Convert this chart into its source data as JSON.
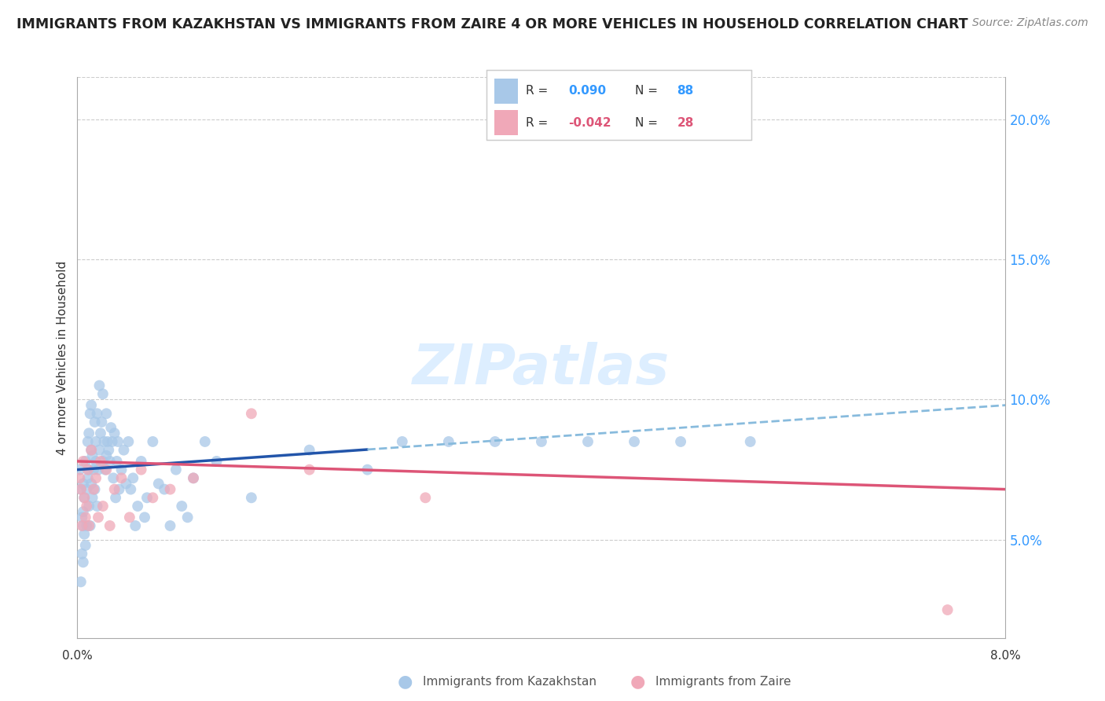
{
  "title": "IMMIGRANTS FROM KAZAKHSTAN VS IMMIGRANTS FROM ZAIRE 4 OR MORE VEHICLES IN HOUSEHOLD CORRELATION CHART",
  "source": "Source: ZipAtlas.com",
  "ylabel": "4 or more Vehicles in Household",
  "xmin": 0.0,
  "xmax": 8.0,
  "ymin": 1.5,
  "ymax": 21.5,
  "ytick_vals": [
    5.0,
    10.0,
    15.0,
    20.0
  ],
  "ytick_labels": [
    "5.0%",
    "10.0%",
    "15.0%",
    "20.0%"
  ],
  "kazakhstan_r": 0.09,
  "kazakhstan_n": 88,
  "zaire_r": -0.042,
  "zaire_n": 28,
  "kazakhstan_color": "#a8c8e8",
  "zaire_color": "#f0a8b8",
  "kazakhstan_line_color": "#2255aa",
  "zaire_line_color": "#dd5577",
  "kazakhstan_dashed_color": "#88bbdd",
  "watermark_color": "#ddeeff",
  "kazakhstan_x": [
    0.02,
    0.03,
    0.03,
    0.04,
    0.04,
    0.05,
    0.05,
    0.05,
    0.05,
    0.06,
    0.06,
    0.07,
    0.07,
    0.08,
    0.08,
    0.09,
    0.09,
    0.1,
    0.1,
    0.1,
    0.11,
    0.11,
    0.12,
    0.12,
    0.12,
    0.13,
    0.13,
    0.14,
    0.15,
    0.15,
    0.16,
    0.16,
    0.17,
    0.17,
    0.18,
    0.19,
    0.19,
    0.2,
    0.21,
    0.22,
    0.22,
    0.23,
    0.24,
    0.25,
    0.25,
    0.26,
    0.27,
    0.28,
    0.29,
    0.3,
    0.31,
    0.32,
    0.33,
    0.34,
    0.35,
    0.36,
    0.38,
    0.4,
    0.42,
    0.44,
    0.46,
    0.48,
    0.5,
    0.52,
    0.55,
    0.58,
    0.6,
    0.65,
    0.7,
    0.75,
    0.8,
    0.85,
    0.9,
    0.95,
    1.0,
    1.1,
    1.2,
    1.5,
    2.0,
    2.5,
    2.8,
    3.2,
    3.6,
    4.0,
    4.4,
    4.8,
    5.2,
    5.8
  ],
  "kazakhstan_y": [
    7.5,
    3.5,
    6.8,
    4.5,
    5.8,
    4.2,
    5.5,
    6.0,
    7.0,
    5.2,
    6.5,
    4.8,
    7.8,
    5.5,
    6.8,
    7.2,
    8.5,
    6.2,
    7.5,
    8.8,
    9.5,
    5.5,
    7.0,
    8.2,
    9.8,
    6.5,
    8.0,
    7.5,
    6.8,
    9.2,
    7.8,
    8.5,
    6.2,
    9.5,
    7.5,
    8.2,
    10.5,
    8.8,
    9.2,
    7.8,
    10.2,
    8.5,
    7.5,
    8.0,
    9.5,
    8.5,
    8.2,
    7.8,
    9.0,
    8.5,
    7.2,
    8.8,
    6.5,
    7.8,
    8.5,
    6.8,
    7.5,
    8.2,
    7.0,
    8.5,
    6.8,
    7.2,
    5.5,
    6.2,
    7.8,
    5.8,
    6.5,
    8.5,
    7.0,
    6.8,
    5.5,
    7.5,
    6.2,
    5.8,
    7.2,
    8.5,
    7.8,
    6.5,
    8.2,
    7.5,
    8.5,
    8.5,
    8.5,
    8.5,
    8.5,
    8.5,
    8.5,
    8.5
  ],
  "zaire_x": [
    0.02,
    0.03,
    0.04,
    0.05,
    0.06,
    0.07,
    0.08,
    0.09,
    0.1,
    0.12,
    0.14,
    0.16,
    0.18,
    0.2,
    0.22,
    0.25,
    0.28,
    0.32,
    0.38,
    0.45,
    0.55,
    0.65,
    0.8,
    1.0,
    1.5,
    2.0,
    3.0,
    7.5
  ],
  "zaire_y": [
    7.2,
    6.8,
    5.5,
    7.8,
    6.5,
    5.8,
    6.2,
    7.5,
    5.5,
    8.2,
    6.8,
    7.2,
    5.8,
    7.8,
    6.2,
    7.5,
    5.5,
    6.8,
    7.2,
    5.8,
    7.5,
    6.5,
    6.8,
    7.2,
    9.5,
    7.5,
    6.5,
    2.5
  ],
  "kaz_trend_x0": 0.0,
  "kaz_trend_y0": 7.5,
  "kaz_trend_x1": 8.0,
  "kaz_trend_y1": 9.8,
  "kaz_solid_end": 2.5,
  "zaire_trend_x0": 0.0,
  "zaire_trend_y0": 7.8,
  "zaire_trend_x1": 8.0,
  "zaire_trend_y1": 6.8
}
